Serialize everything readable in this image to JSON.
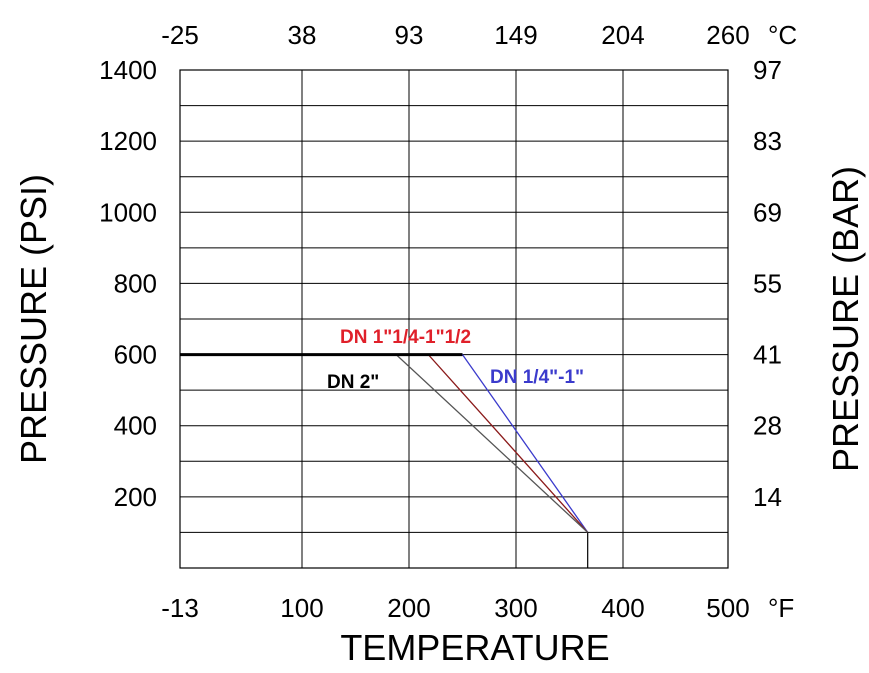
{
  "chart_data": {
    "type": "line",
    "xlabel": "TEMPERATURE",
    "ylabel_left": "PRESSURE (PSI)",
    "ylabel_right": "PRESSURE (BAR)",
    "x_unit_bottom": "°F",
    "x_unit_top": "°C",
    "xlim": [
      -13,
      500
    ],
    "ylim": [
      0,
      1400
    ],
    "x_ticks_bottom": [
      "-13",
      "100",
      "200",
      "300",
      "400",
      "500"
    ],
    "x_ticks_top": [
      "-25",
      "38",
      "93",
      "149",
      "204",
      "260"
    ],
    "y_ticks_left": [
      "1400",
      "1200",
      "1000",
      "800",
      "600",
      "400",
      "200"
    ],
    "y_ticks_right": [
      "97",
      "83",
      "69",
      "55",
      "41",
      "28",
      "14"
    ],
    "grid": true,
    "series": [
      {
        "name": "DN 1/4\"-1\"",
        "color": "#3b3bcc",
        "x": [
          -13,
          250,
          367
        ],
        "y": [
          600,
          600,
          100
        ]
      },
      {
        "name": "DN 1\"1/4-1\"1/2",
        "color": "#8b1a1a",
        "x": [
          -13,
          218,
          367
        ],
        "y": [
          600,
          600,
          100
        ]
      },
      {
        "name": "DN 2\"",
        "color": "#555555",
        "x": [
          -13,
          188,
          367
        ],
        "y": [
          600,
          600,
          100
        ]
      }
    ],
    "series_label_colors": [
      "#3b3bcc",
      "#e0202a",
      "#000000"
    ]
  }
}
